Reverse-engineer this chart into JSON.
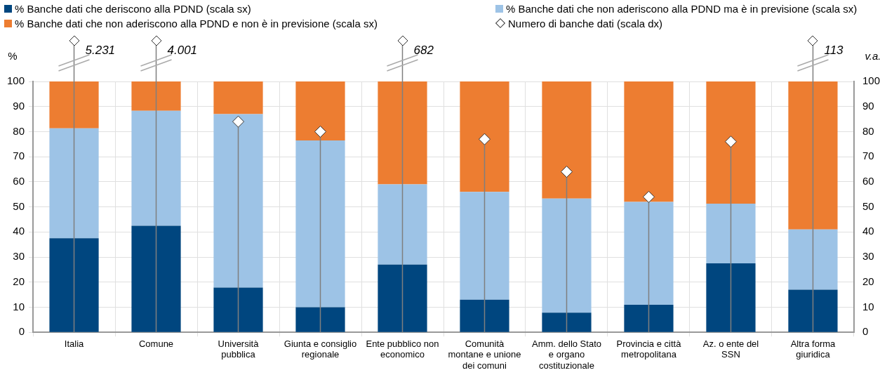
{
  "chart_data": {
    "type": "bar",
    "stacked": true,
    "categories": [
      "Italia",
      "Comune",
      "Università pubblica",
      "Giunta e consiglio regionale",
      "Ente pubblico non economico",
      "Comunità montane e unione dei comuni",
      "Amm. dello Stato e organo costituzionale",
      "Provincia e città metropolitana",
      "Az. o ente del SSN",
      "Altra forma giuridica"
    ],
    "series": [
      {
        "name": "% Banche dati che deriscono alla PDND (scala sx)",
        "color": "#00467f",
        "values": [
          37.5,
          42.5,
          17.8,
          10,
          27,
          13,
          7.8,
          11,
          27.5,
          17
        ]
      },
      {
        "name": "% Banche dati che non aderiscono alla PDND ma è in previsione (scala sx)",
        "color": "#9dc3e6",
        "values": [
          43.8,
          45.8,
          69.2,
          66.5,
          32,
          43,
          45.5,
          41,
          23.8,
          24
        ]
      },
      {
        "name": "% Banche dati che non aderiscono alla PDND e non è in previsione (scala sx)",
        "color": "#ed7d31",
        "values": [
          18.7,
          11.7,
          13,
          23.5,
          41,
          44,
          46.7,
          48,
          48.7,
          59
        ]
      },
      {
        "name": "Numero di banche dati (scala dx)",
        "type": "lollipop",
        "axis": "y2",
        "marker": "diamond",
        "color": "#ffffff",
        "values": [
          null,
          null,
          84,
          80,
          null,
          77,
          64,
          54,
          76,
          null
        ]
      }
    ],
    "annotations": [
      "5.231",
      "4.001",
      "682",
      "113"
    ],
    "ylabel": "%",
    "y2label": "v.a.",
    "ylim": [
      0,
      100
    ],
    "yticks": [
      0,
      10,
      20,
      30,
      40,
      50,
      60,
      70,
      80,
      90,
      100
    ],
    "y2lim": [
      0,
      100
    ],
    "y2ticks": [
      0,
      10,
      20,
      30,
      40,
      50,
      60,
      70,
      80,
      90,
      100
    ],
    "grid": true,
    "legend": "top"
  }
}
